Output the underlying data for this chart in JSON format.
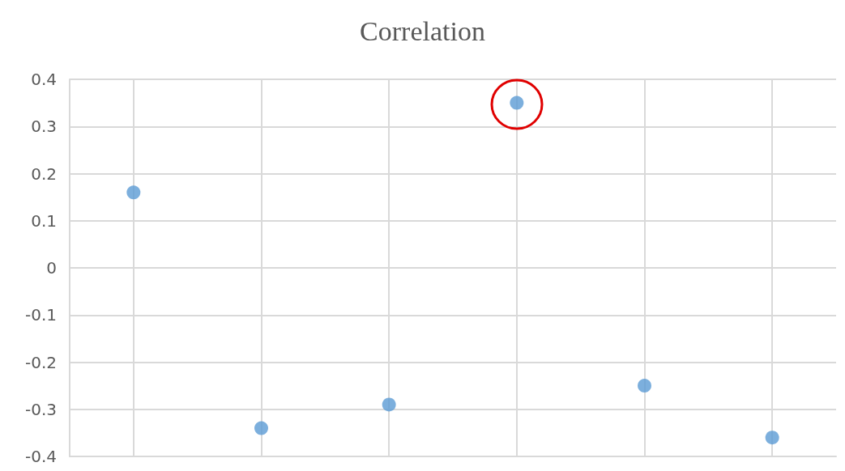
{
  "chart_data": {
    "type": "scatter",
    "title": "Correlation",
    "categories": [
      null,
      null,
      null,
      null,
      null,
      null
    ],
    "values": [
      0.16,
      -0.34,
      -0.29,
      0.35,
      -0.25,
      -0.36
    ],
    "color": "#5b9bd5",
    "ylim": [
      -0.4,
      0.4
    ],
    "yticks": [
      -0.4,
      -0.3,
      -0.2,
      -0.1,
      0,
      0.1,
      0.2,
      0.3,
      0.4
    ],
    "grid": true,
    "marker": "circle"
  }
}
